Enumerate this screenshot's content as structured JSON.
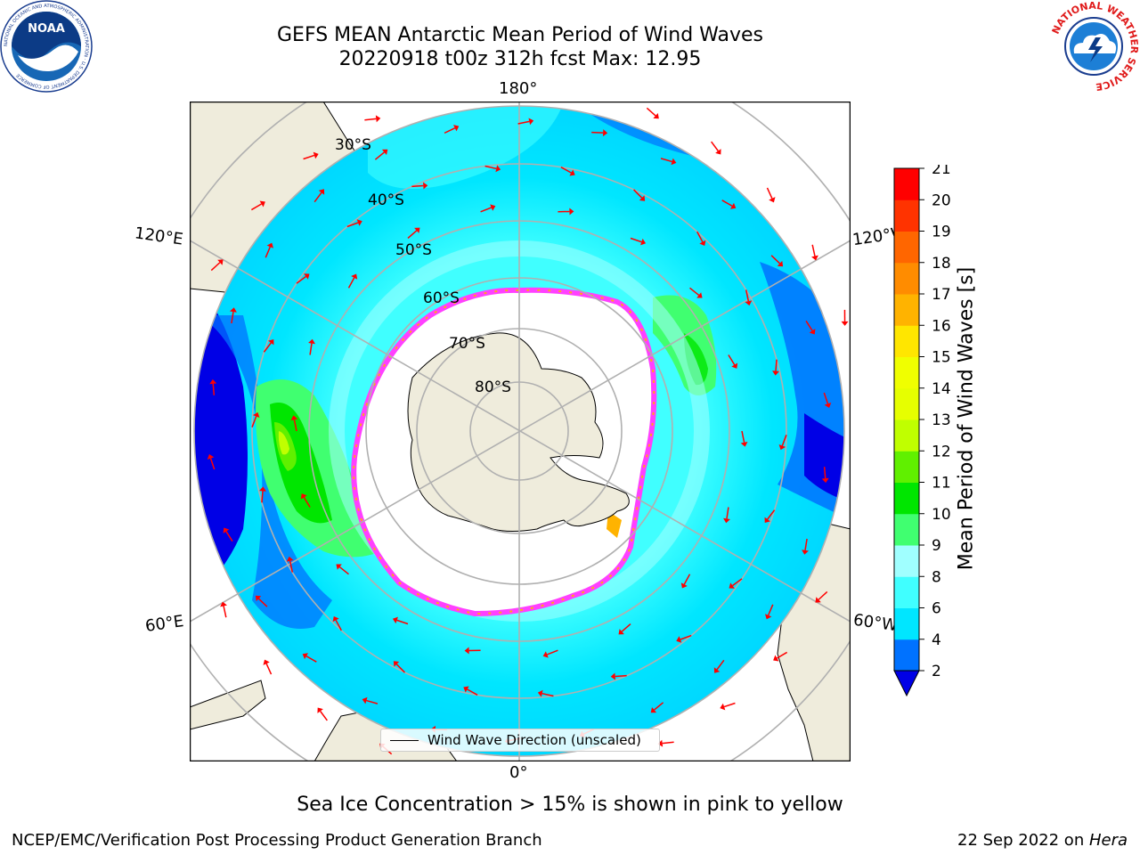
{
  "title": {
    "line1": "GEFS MEAN Antarctic Mean Period of Wind Waves",
    "line2": "20220918 t00z 312h fcst   Max: 12.95"
  },
  "logos": {
    "left": "noaa-logo",
    "left_text": "NOAA",
    "left_ring_text": "NATIONAL OCEANIC AND ATMOSPHERIC ADMINISTRATION · U.S. DEPARTMENT OF COMMERCE",
    "right": "nws-logo",
    "right_ring_text": "NATIONAL WEATHER SERVICE"
  },
  "map": {
    "projection": "south-polar-stereographic",
    "longitude_labels": {
      "top": "180°",
      "bottom": "0°",
      "upper_left": "120°E",
      "lower_left": "60°E",
      "upper_right": "120°W",
      "lower_right": "60°W"
    },
    "latitude_labels": [
      "30°S",
      "40°S",
      "50°S",
      "60°S",
      "70°S",
      "80°S"
    ],
    "legend": {
      "label": "Wind Wave Direction (unscaled)"
    }
  },
  "colorbar": {
    "label": "Mean Period of Wind Waves [s]",
    "ticks": [
      "2",
      "4",
      "6",
      "8",
      "9",
      "10",
      "11",
      "12",
      "13",
      "14",
      "15",
      "16",
      "17",
      "18",
      "19",
      "20",
      "21"
    ],
    "colors": [
      "#0072ff",
      "#00e6ff",
      "#40ffff",
      "#a0ffff",
      "#40ff70",
      "#00e600",
      "#60f000",
      "#c0ff00",
      "#e6ff00",
      "#f0ff00",
      "#ffe600",
      "#ffb300",
      "#ff8c00",
      "#ff6600",
      "#ff3300",
      "#ff0000"
    ],
    "under_color": "#0000e6"
  },
  "caption": "Sea Ice Concentration > 15% is shown in pink to yellow",
  "footer": {
    "left": "NCEP/EMC/Verification Post Processing Product Generation Branch",
    "date": "22 Sep 2022 on ",
    "host": "Hera"
  }
}
